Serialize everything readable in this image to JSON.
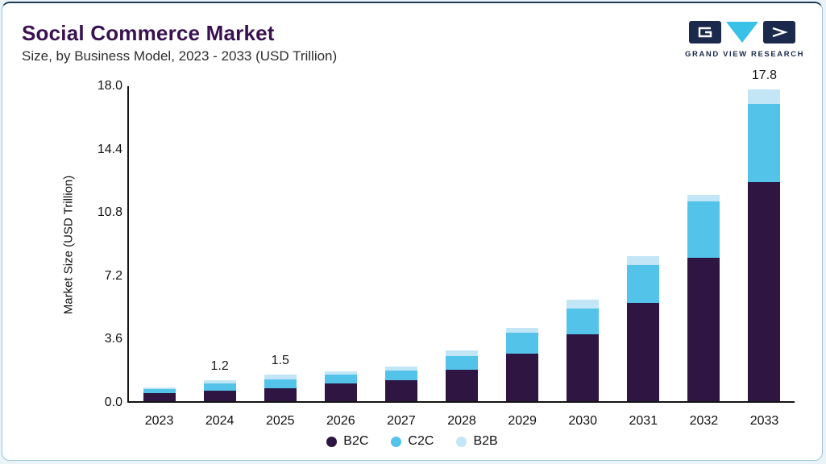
{
  "header": {
    "title": "Social Commerce Market",
    "subtitle": "Size, by Business Model, 2023 - 2033 (USD Trillion)",
    "logo_text": "GRAND VIEW RESEARCH",
    "logo_colors": {
      "navy": "#1b2a4c",
      "cyan": "#39c1e8"
    }
  },
  "chart_data": {
    "type": "bar",
    "stacked": true,
    "title": "Social Commerce Market Size, by Business Model, 2023 - 2033 (USD Trillion)",
    "xlabel": "",
    "ylabel": "Market Size (USD Trillion)",
    "ylim": [
      0,
      18
    ],
    "yticks": [
      "18.0",
      "14.4",
      "10.8",
      "7.2",
      "3.6",
      "0.0"
    ],
    "grid": false,
    "legend_position": "bottom",
    "categories": [
      "2023",
      "2024",
      "2025",
      "2026",
      "2027",
      "2028",
      "2029",
      "2030",
      "2031",
      "2032",
      "2033"
    ],
    "series": [
      {
        "name": "B2C",
        "color": "#2f1541",
        "values": [
          0.45,
          0.6,
          0.75,
          1.0,
          1.2,
          1.8,
          2.7,
          3.8,
          5.6,
          8.2,
          12.5
        ]
      },
      {
        "name": "C2C",
        "color": "#53c3ea",
        "values": [
          0.25,
          0.4,
          0.5,
          0.5,
          0.55,
          0.8,
          1.2,
          1.5,
          2.2,
          3.2,
          4.5
        ]
      },
      {
        "name": "B2B",
        "color": "#c3e6f7",
        "values": [
          0.1,
          0.2,
          0.25,
          0.2,
          0.25,
          0.3,
          0.3,
          0.5,
          0.5,
          0.4,
          0.8
        ]
      }
    ],
    "bar_labels": [
      "",
      "1.2",
      "1.5",
      "",
      "",
      "",
      "",
      "",
      "",
      "",
      "17.8"
    ],
    "legend": [
      {
        "label": "B2C",
        "color": "#2f1541"
      },
      {
        "label": "C2C",
        "color": "#53c3ea"
      },
      {
        "label": "B2B",
        "color": "#c3e6f7"
      }
    ]
  }
}
